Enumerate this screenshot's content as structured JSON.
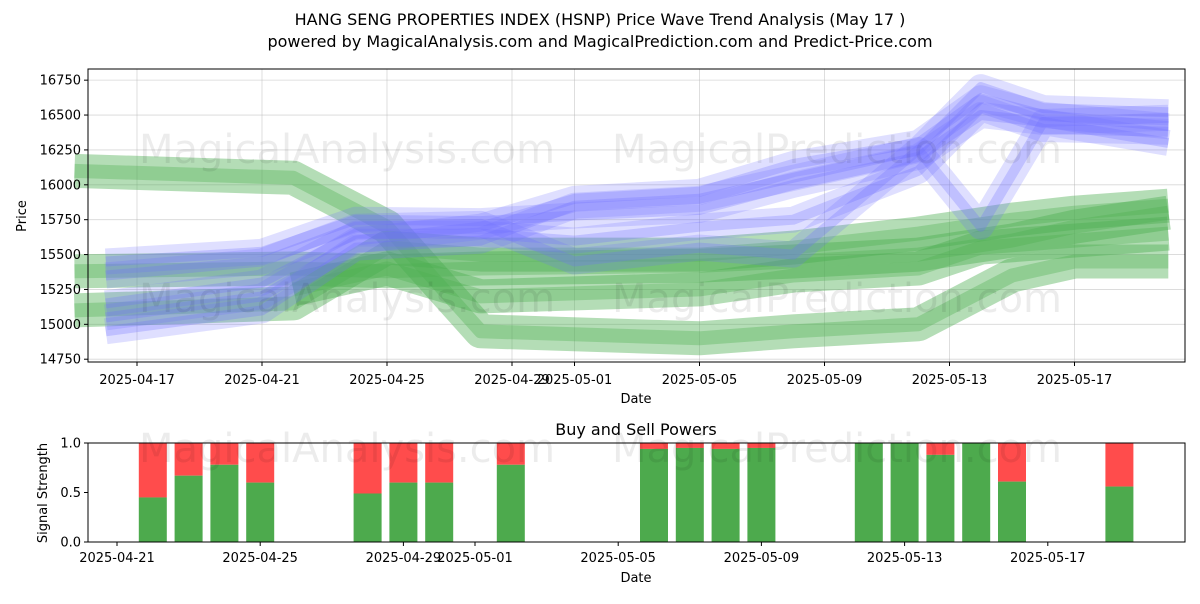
{
  "title_line1": "HANG SENG PROPERTIES INDEX (HSNP) Price Wave Trend Analysis (May 17 )",
  "title_line2": "powered by MagicalAnalysis.com and MagicalPrediction.com and Predict-Price.com",
  "watermarks": [
    "MagicalAnalysis.com",
    "MagicalPrediction.com"
  ],
  "colors": {
    "up": "#4daa4d",
    "down": "#ff4c4c",
    "wave": "#6f6fff",
    "wave_green": "#4caf50"
  },
  "chart_data": [
    {
      "type": "area",
      "ylabel": "Price",
      "xlabel": "Date",
      "ylim": [
        14730,
        16830
      ],
      "xlim_days": [
        "2025-04-15",
        "2025-05-21"
      ],
      "yticks": [
        14750,
        15000,
        15250,
        15500,
        15750,
        16000,
        16250,
        16500,
        16750
      ],
      "xticks": [
        "2025-04-17",
        "2025-04-21",
        "2025-04-25",
        "2025-04-29",
        "2025-05-01",
        "2025-05-05",
        "2025-05-09",
        "2025-05-13",
        "2025-05-17"
      ],
      "grid": true,
      "series": [
        {
          "color": "#6f6fff",
          "values": [
            [
              "2025-04-16",
              15450
            ],
            [
              "2025-04-21",
              15520
            ],
            [
              "2025-04-24",
              15750
            ],
            [
              "2025-04-28",
              15740
            ],
            [
              "2025-05-01",
              15780
            ],
            [
              "2025-05-05",
              15820
            ],
            [
              "2025-05-08",
              16000
            ],
            [
              "2025-05-12",
              16200
            ],
            [
              "2025-05-14",
              16500
            ],
            [
              "2025-05-16",
              16450
            ],
            [
              "2025-05-20",
              16480
            ]
          ]
        },
        {
          "color": "#6f6fff",
          "values": [
            [
              "2025-04-16",
              15050
            ],
            [
              "2025-04-21",
              15200
            ],
            [
              "2025-04-24",
              15600
            ],
            [
              "2025-04-28",
              15700
            ],
            [
              "2025-05-01",
              15900
            ],
            [
              "2025-05-05",
              15950
            ],
            [
              "2025-05-08",
              16150
            ],
            [
              "2025-05-12",
              16300
            ],
            [
              "2025-05-14",
              16620
            ],
            [
              "2025-05-16",
              16500
            ],
            [
              "2025-05-20",
              16420
            ]
          ]
        },
        {
          "color": "#6f6fff",
          "values": [
            [
              "2025-04-16",
              15150
            ],
            [
              "2025-04-21",
              15300
            ],
            [
              "2025-04-24",
              15650
            ],
            [
              "2025-04-28",
              15650
            ],
            [
              "2025-05-01",
              15600
            ],
            [
              "2025-05-05",
              15700
            ],
            [
              "2025-05-08",
              15750
            ],
            [
              "2025-05-12",
              16100
            ],
            [
              "2025-05-14",
              16550
            ],
            [
              "2025-05-16",
              16400
            ],
            [
              "2025-05-20",
              16380
            ]
          ]
        },
        {
          "color": "#6f6fff",
          "values": [
            [
              "2025-04-16",
              15350
            ],
            [
              "2025-04-21",
              15450
            ],
            [
              "2025-04-24",
              15700
            ],
            [
              "2025-04-28",
              15720
            ],
            [
              "2025-05-01",
              15450
            ],
            [
              "2025-05-05",
              15550
            ],
            [
              "2025-05-08",
              15500
            ],
            [
              "2025-05-12",
              16250
            ],
            [
              "2025-05-14",
              15700
            ],
            [
              "2025-05-16",
              16450
            ],
            [
              "2025-05-20",
              16300
            ]
          ]
        },
        {
          "color": "#6f6fff",
          "values": [
            [
              "2025-04-16",
              14950
            ],
            [
              "2025-04-21",
              15100
            ],
            [
              "2025-04-24",
              15550
            ],
            [
              "2025-04-28",
              15600
            ],
            [
              "2025-05-01",
              15850
            ],
            [
              "2025-05-05",
              15900
            ],
            [
              "2025-05-08",
              16050
            ],
            [
              "2025-05-12",
              16250
            ],
            [
              "2025-05-14",
              16700
            ],
            [
              "2025-05-16",
              16550
            ],
            [
              "2025-05-20",
              16520
            ]
          ]
        },
        {
          "color": "#4caf50",
          "values": [
            [
              "2025-04-15",
              16100
            ],
            [
              "2025-04-22",
              16050
            ],
            [
              "2025-04-25",
              15700
            ],
            [
              "2025-04-28",
              14950
            ],
            [
              "2025-05-05",
              14900
            ],
            [
              "2025-05-08",
              14950
            ],
            [
              "2025-05-12",
              15000
            ],
            [
              "2025-05-15",
              15350
            ],
            [
              "2025-05-17",
              15450
            ],
            [
              "2025-05-20",
              15450
            ]
          ]
        },
        {
          "color": "#4caf50",
          "values": [
            [
              "2025-04-15",
              15380
            ],
            [
              "2025-04-22",
              15400
            ],
            [
              "2025-04-25",
              15380
            ],
            [
              "2025-04-28",
              15400
            ],
            [
              "2025-05-05",
              15420
            ],
            [
              "2025-05-08",
              15450
            ],
            [
              "2025-05-12",
              15500
            ],
            [
              "2025-05-15",
              15600
            ],
            [
              "2025-05-17",
              15700
            ],
            [
              "2025-05-20",
              15800
            ]
          ]
        },
        {
          "color": "#4caf50",
          "values": [
            [
              "2025-04-15",
              15100
            ],
            [
              "2025-04-22",
              15150
            ],
            [
              "2025-04-25",
              15550
            ],
            [
              "2025-04-28",
              15500
            ],
            [
              "2025-05-05",
              15500
            ],
            [
              "2025-05-08",
              15550
            ],
            [
              "2025-05-12",
              15650
            ],
            [
              "2025-05-15",
              15750
            ],
            [
              "2025-05-17",
              15800
            ],
            [
              "2025-05-20",
              15850
            ]
          ]
        },
        {
          "color": "#4caf50",
          "values": [
            [
              "2025-04-22",
              15250
            ],
            [
              "2025-04-25",
              15400
            ],
            [
              "2025-04-28",
              15200
            ],
            [
              "2025-05-05",
              15250
            ],
            [
              "2025-05-08",
              15350
            ],
            [
              "2025-05-12",
              15400
            ],
            [
              "2025-05-14",
              15550
            ],
            [
              "2025-05-17",
              15600
            ],
            [
              "2025-05-20",
              15650
            ]
          ]
        }
      ]
    },
    {
      "type": "bar",
      "title": "Buy and Sell Powers",
      "ylabel": "Signal Strength",
      "xlabel": "Date",
      "ylim": [
        0,
        1
      ],
      "yticks": [
        "0.0",
        "0.5",
        "1.0"
      ],
      "xticks": [
        "2025-04-21",
        "2025-04-25",
        "2025-04-29",
        "2025-05-01",
        "2025-05-05",
        "2025-05-09",
        "2025-05-13",
        "2025-05-17"
      ],
      "series": [
        {
          "name": "buy",
          "color": "#4daa4d"
        },
        {
          "name": "sell",
          "color": "#ff4c4c"
        }
      ],
      "bars": [
        {
          "date": "2025-04-22",
          "buy": 0.45
        },
        {
          "date": "2025-04-23",
          "buy": 0.67
        },
        {
          "date": "2025-04-24",
          "buy": 0.78
        },
        {
          "date": "2025-04-25",
          "buy": 0.6
        },
        {
          "date": "2025-04-28",
          "buy": 0.49
        },
        {
          "date": "2025-04-29",
          "buy": 0.6
        },
        {
          "date": "2025-04-30",
          "buy": 0.6
        },
        {
          "date": "2025-05-02",
          "buy": 0.78
        },
        {
          "date": "2025-05-06",
          "buy": 0.94
        },
        {
          "date": "2025-05-07",
          "buy": 0.95
        },
        {
          "date": "2025-05-08",
          "buy": 0.94
        },
        {
          "date": "2025-05-09",
          "buy": 0.95
        },
        {
          "date": "2025-05-12",
          "buy": 1.0
        },
        {
          "date": "2025-05-13",
          "buy": 1.0
        },
        {
          "date": "2025-05-14",
          "buy": 0.88
        },
        {
          "date": "2025-05-15",
          "buy": 1.0
        },
        {
          "date": "2025-05-16",
          "buy": 0.61
        },
        {
          "date": "2025-05-19",
          "buy": 0.56
        }
      ]
    }
  ]
}
